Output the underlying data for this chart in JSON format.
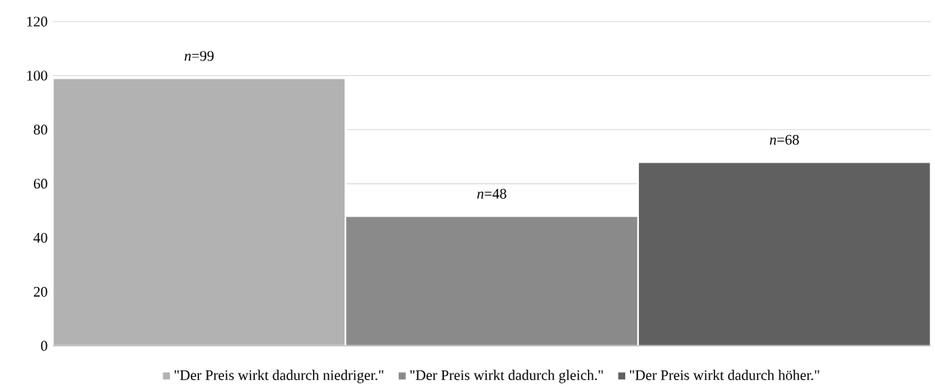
{
  "chart_data": {
    "type": "bar",
    "categories": [
      null
    ],
    "series": [
      {
        "name": "\"Der Preis wirkt dadurch niedriger.\"",
        "color": "#b2b2b2",
        "values": [
          99
        ],
        "value_labels": [
          "*n*=99"
        ]
      },
      {
        "name": "\"Der Preis wirkt dadurch gleich.\"",
        "color": "#8a8a8a",
        "values": [
          48
        ],
        "value_labels": [
          "*n*=48"
        ]
      },
      {
        "name": "\"Der Preis wirkt dadurch höher.\"",
        "color": "#606060",
        "values": [
          68
        ],
        "value_labels": [
          "*n*=68"
        ]
      }
    ],
    "ylim": [
      0,
      120
    ],
    "yticks": [
      0,
      20,
      40,
      60,
      80,
      100,
      120
    ],
    "grid": "y",
    "legend": "bottom"
  }
}
